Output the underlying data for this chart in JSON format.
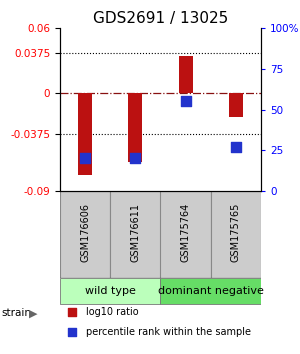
{
  "title": "GDS2691 / 13025",
  "samples": [
    "GSM176606",
    "GSM176611",
    "GSM175764",
    "GSM175765"
  ],
  "log10_ratio": [
    -0.075,
    -0.063,
    0.034,
    -0.022
  ],
  "percentile_rank": [
    0.2,
    0.2,
    0.55,
    0.27
  ],
  "groups": [
    {
      "label": "wild type",
      "samples": [
        0,
        1
      ],
      "color": "#bbffbb"
    },
    {
      "label": "dominant negative",
      "samples": [
        2,
        3
      ],
      "color": "#66dd66"
    }
  ],
  "ylim_left": [
    -0.09,
    0.06
  ],
  "ylim_right": [
    0.0,
    1.0
  ],
  "yticks_left": [
    -0.09,
    -0.0375,
    0,
    0.0375,
    0.06
  ],
  "ytick_labels_left": [
    "-0.09",
    "-0.0375",
    "0",
    "0.0375",
    "0.06"
  ],
  "yticks_right": [
    0.0,
    0.25,
    0.5,
    0.75,
    1.0
  ],
  "ytick_labels_right": [
    "0",
    "25",
    "50",
    "75",
    "100%"
  ],
  "hlines_dotted": [
    -0.0375,
    0.0375
  ],
  "hline_dashdot": 0.0,
  "bar_color": "#bb1111",
  "dot_color": "#2233cc",
  "bar_width": 0.28,
  "dot_size": 50,
  "strain_label": "strain",
  "legend_ratio": "log10 ratio",
  "legend_percentile": "percentile rank within the sample",
  "background_color": "#ffffff",
  "plot_bg": "#ffffff",
  "title_fontsize": 11,
  "tick_fontsize": 7.5,
  "sample_fontsize": 7,
  "group_fontsize": 8,
  "sample_bg": "#cccccc",
  "sample_border": "#888888"
}
